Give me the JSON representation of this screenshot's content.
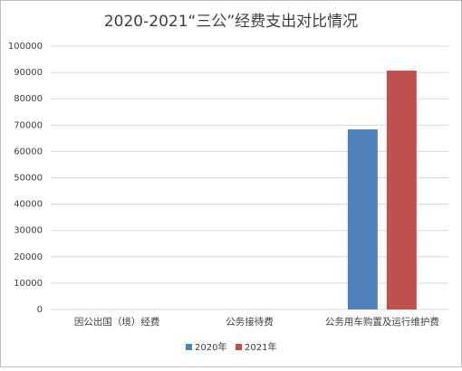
{
  "chart_data": {
    "type": "bar",
    "title": "2020-2021“三公”经费支出对比情况",
    "categories": [
      "因公出国（境）经费",
      "公务接待费",
      "公务用车购置及运行维护费"
    ],
    "series": [
      {
        "name": "2020年",
        "color": "#4f81bd",
        "values": [
          0,
          0,
          68400
        ]
      },
      {
        "name": "2021年",
        "color": "#c0504d",
        "values": [
          0,
          0,
          90700
        ]
      }
    ],
    "ylim": [
      0,
      100000
    ],
    "yticks": [
      0,
      10000,
      20000,
      30000,
      40000,
      50000,
      60000,
      70000,
      80000,
      90000,
      100000
    ],
    "grid": true,
    "legend": "bottom"
  }
}
